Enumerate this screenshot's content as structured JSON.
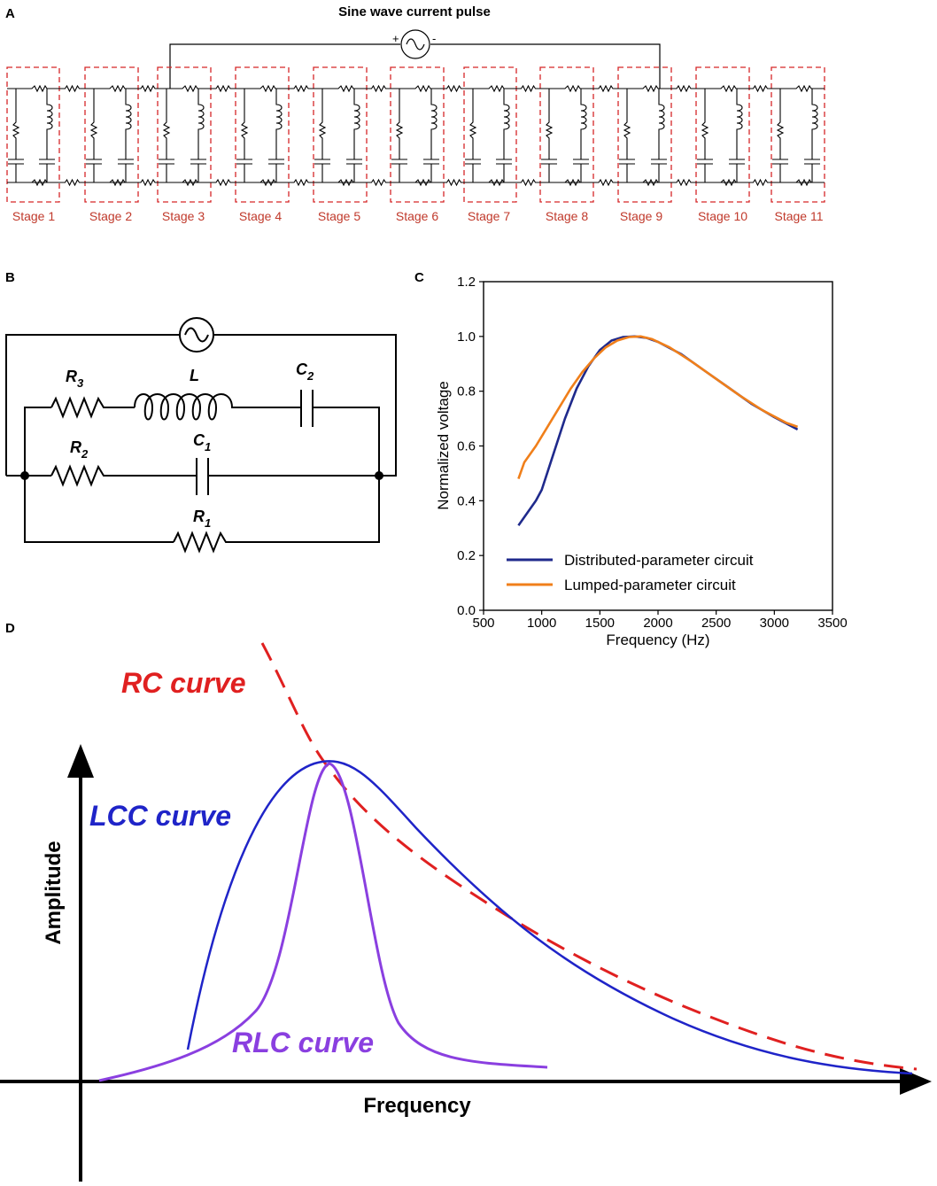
{
  "panel_a": {
    "letter": "A",
    "title": "Sine wave current pulse",
    "source_plus": "+",
    "source_minus": "-",
    "stages": [
      "Stage 1",
      "Stage 2",
      "Stage 3",
      "Stage 4",
      "Stage 5",
      "Stage 6",
      "Stage 7",
      "Stage 8",
      "Stage 9",
      "Stage 10",
      "Stage 11"
    ],
    "colors": {
      "stage_box": "#d62728",
      "stage_text": "#c0392b"
    }
  },
  "panel_b": {
    "letter": "B",
    "labels": {
      "r3": "R",
      "r3_sub": "3",
      "l": "L",
      "c2": "C",
      "c2_sub": "2",
      "r2": "R",
      "r2_sub": "2",
      "c1": "C",
      "c1_sub": "1",
      "r1": "R",
      "r1_sub": "1"
    }
  },
  "panel_c": {
    "letter": "C",
    "chart_data": {
      "type": "line",
      "title": "",
      "xlabel": "Frequency (Hz)",
      "ylabel": "Normalized voltage",
      "xlim": [
        500,
        3500
      ],
      "ylim": [
        0.0,
        1.2
      ],
      "xticks": [
        500,
        1000,
        1500,
        2000,
        2500,
        3000,
        3500
      ],
      "yticks": [
        0.0,
        0.2,
        0.4,
        0.6,
        0.8,
        1.0,
        1.2
      ],
      "x_tick_labels": [
        "500",
        "1000",
        "1500",
        "2000",
        "2500",
        "3000",
        "3500"
      ],
      "y_tick_labels": [
        "0.0",
        "0.2",
        "0.4",
        "0.6",
        "0.8",
        "1.0",
        "1.2"
      ],
      "legend_position": "bottom-left",
      "series": [
        {
          "name": "Distributed-parameter circuit",
          "color": "#1f2a8c",
          "x": [
            800,
            950,
            1000,
            1100,
            1200,
            1300,
            1400,
            1500,
            1600,
            1700,
            1800,
            1900,
            2000,
            2200,
            2400,
            2600,
            2800,
            3000,
            3200
          ],
          "y": [
            0.31,
            0.4,
            0.44,
            0.57,
            0.7,
            0.81,
            0.89,
            0.95,
            0.985,
            0.998,
            1.0,
            0.995,
            0.98,
            0.935,
            0.875,
            0.815,
            0.755,
            0.705,
            0.66
          ]
        },
        {
          "name": "Lumped-parameter circuit",
          "color": "#f07f1a",
          "x": [
            800,
            850,
            950,
            1050,
            1150,
            1250,
            1350,
            1450,
            1550,
            1650,
            1750,
            1850,
            1950,
            2100,
            2300,
            2500,
            2700,
            2900,
            3100,
            3200
          ],
          "y": [
            0.48,
            0.54,
            0.6,
            0.67,
            0.74,
            0.81,
            0.87,
            0.92,
            0.96,
            0.985,
            0.998,
            1.0,
            0.99,
            0.96,
            0.905,
            0.845,
            0.785,
            0.73,
            0.685,
            0.67
          ]
        }
      ]
    }
  },
  "panel_d": {
    "letter": "D",
    "x_axis_label": "Frequency",
    "y_axis_label": "Amplitude",
    "rc_label": "RC curve",
    "lcc_label": "LCC curve",
    "rlc_label": "RLC curve",
    "colors": {
      "rc": "#e02020",
      "lcc": "#1f24c8",
      "rlc": "#8a3fe0"
    }
  }
}
